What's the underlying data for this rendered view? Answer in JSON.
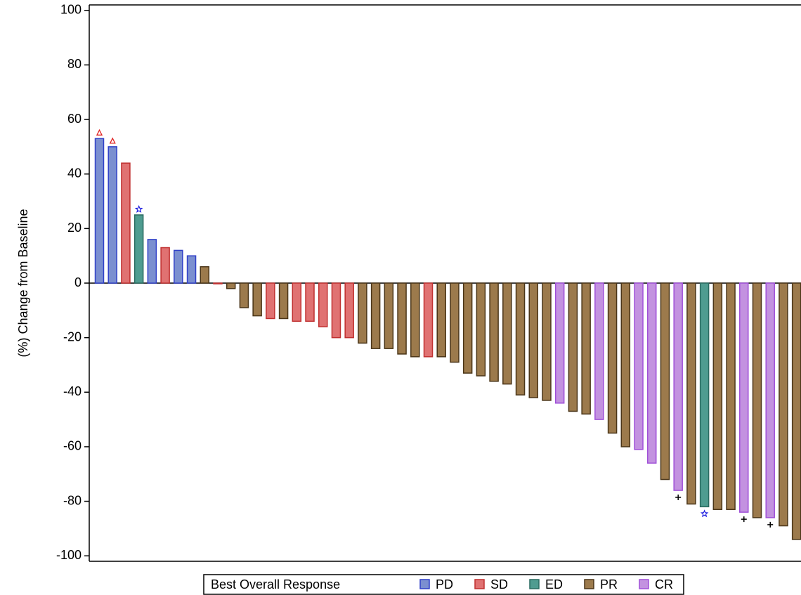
{
  "chart_data": {
    "type": "waterfall",
    "ylabel": "(%) Change from Baseline",
    "ylim": [
      -102,
      102
    ],
    "yticks": [
      -100,
      -80,
      -60,
      -40,
      -20,
      0,
      20,
      40,
      60,
      80,
      100
    ],
    "values": [
      53,
      50,
      44,
      25,
      16,
      13,
      12,
      10,
      6,
      0,
      -2,
      -9,
      -12,
      -13,
      -13,
      -14,
      -14,
      -16,
      -20,
      -20,
      -22,
      -24,
      -24,
      -26,
      -27,
      -27,
      -27,
      -29,
      -33,
      -34,
      -36,
      -37,
      -41,
      -42,
      -43,
      -44,
      -47,
      -48,
      -50,
      -55,
      -60,
      -61,
      -66,
      -72,
      -76,
      -81,
      -82,
      -83,
      -83,
      -84,
      -86,
      -86,
      -89,
      -94
    ],
    "groups": [
      "PD",
      "PD",
      "SD",
      "ED",
      "PD",
      "SD",
      "PD",
      "PD",
      "PR",
      "SD",
      "PR",
      "PR",
      "PR",
      "SD",
      "PR",
      "SD",
      "SD",
      "SD",
      "SD",
      "SD",
      "PR",
      "PR",
      "PR",
      "PR",
      "PR",
      "SD",
      "PR",
      "PR",
      "PR",
      "PR",
      "PR",
      "PR",
      "PR",
      "PR",
      "PR",
      "CR",
      "PR",
      "PR",
      "CR",
      "PR",
      "PR",
      "CR",
      "CR",
      "PR",
      "CR",
      "PR",
      "ED",
      "PR",
      "PR",
      "CR",
      "PR",
      "CR",
      "PR",
      "PR"
    ],
    "flags": [
      "triangle",
      "triangle",
      null,
      "star",
      null,
      null,
      null,
      null,
      null,
      null,
      null,
      null,
      null,
      null,
      null,
      null,
      null,
      null,
      null,
      null,
      null,
      null,
      null,
      null,
      null,
      null,
      null,
      null,
      null,
      null,
      null,
      null,
      null,
      null,
      null,
      null,
      null,
      null,
      null,
      null,
      null,
      null,
      null,
      null,
      "plus",
      null,
      "star",
      null,
      null,
      "plus",
      null,
      "plus",
      null,
      null
    ],
    "legend": {
      "title": "Best Overall Response",
      "items": [
        {
          "name": "PD",
          "color": "#7b8fd0",
          "edge": "#3040c8"
        },
        {
          "name": "SD",
          "color": "#e07272",
          "edge": "#c03030"
        },
        {
          "name": "ED",
          "color": "#4f9c90",
          "edge": "#2a6b60"
        },
        {
          "name": "PR",
          "color": "#9c7a4c",
          "edge": "#4a3518"
        },
        {
          "name": "CR",
          "color": "#c392e0",
          "edge": "#a050d8"
        }
      ]
    }
  }
}
